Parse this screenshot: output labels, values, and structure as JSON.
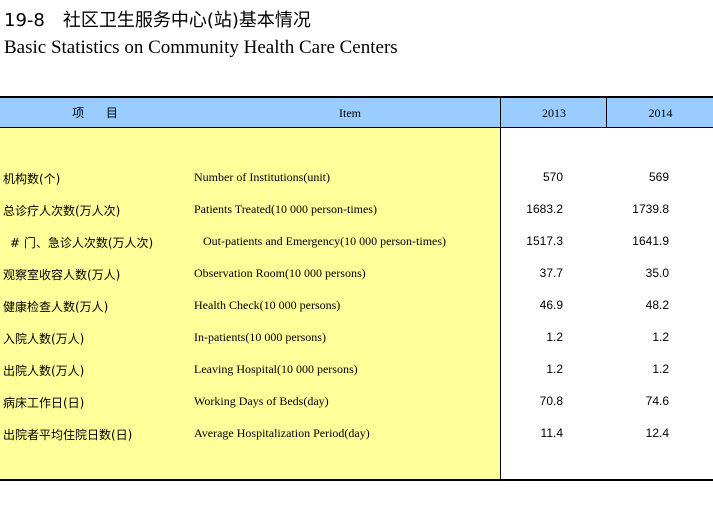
{
  "title": {
    "number": "19-8",
    "cn": "社区卫生服务中心(站)基本情况",
    "en": "Basic Statistics on Community Health Care Centers"
  },
  "colors": {
    "header_bg": "#99ccff",
    "item_bg": "#ffff99"
  },
  "header": {
    "item_cn": "项 目",
    "item_en": "Item",
    "years": [
      "2013",
      "2014"
    ]
  },
  "rows": [
    {
      "cn": "机构数(个)",
      "en": "Number of Institutions(unit)",
      "v2013": "570",
      "v2014": "569"
    },
    {
      "cn": "总诊疗人次数(万人次)",
      "en": "Patients Treated(10 000 person-times)",
      "v2013": "1683.2",
      "v2014": "1739.8"
    },
    {
      "cn": "# 门、急诊人次数(万人次)",
      "en": "Out-patients and Emergency(10 000 person-times)",
      "v2013": "1517.3",
      "v2014": "1641.9"
    },
    {
      "cn": "观察室收容人数(万人)",
      "en": "Observation Room(10 000 persons)",
      "v2013": "37.7",
      "v2014": "35.0"
    },
    {
      "cn": "健康检查人数(万人)",
      "en": "Health Check(10 000 persons)",
      "v2013": "46.9",
      "v2014": "48.2"
    },
    {
      "cn": "入院人数(万人)",
      "en": "In-patients(10 000 persons)",
      "v2013": "1.2",
      "v2014": "1.2"
    },
    {
      "cn": "出院人数(万人)",
      "en": "Leaving Hospital(10 000 persons)",
      "v2013": "1.2",
      "v2014": "1.2"
    },
    {
      "cn": "病床工作日(日)",
      "en": "Working Days of Beds(day)",
      "v2013": "70.8",
      "v2014": "74.6"
    },
    {
      "cn": "出院者平均住院日数(日)",
      "en": "Average Hospitalization Period(day)",
      "v2013": "11.4",
      "v2014": "12.4"
    }
  ]
}
